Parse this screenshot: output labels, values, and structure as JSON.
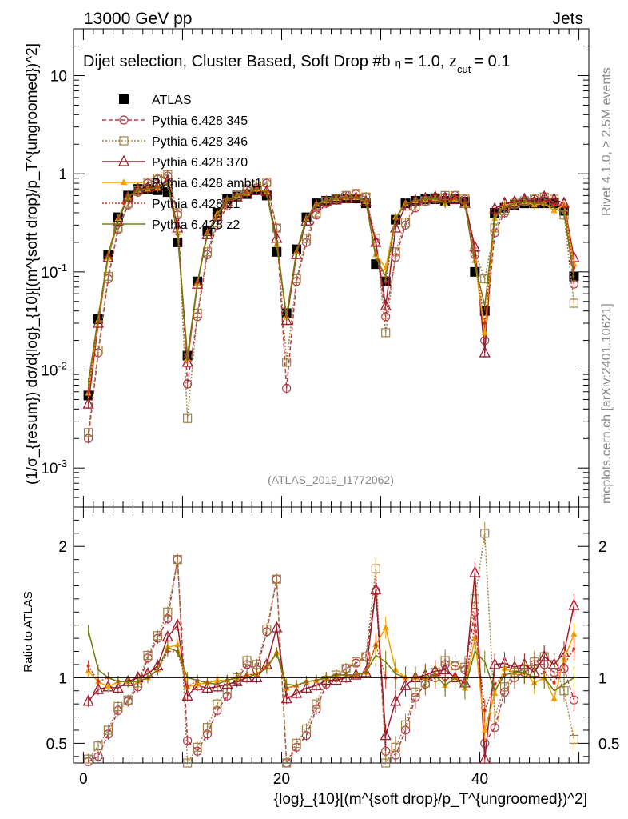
{
  "header": {
    "left": "13000 GeV pp",
    "right": "Jets"
  },
  "side_labels": {
    "rivet": "Rivet 4.1.0, ≥ 2.5M events",
    "mcplots": "mcplots.cern.ch [arXiv:2401.10621]"
  },
  "plot_title": "Dijet selection, Cluster Based, Soft Drop #b",
  "plot_title_tail": "= 1.0, z",
  "plot_title_sub": "cut",
  "plot_title_end": "= 0.1",
  "analysis_id": "(ATLAS_2019_I1772062)",
  "main_ylabel": "(1/σ_{resum}) dσ/d{log}_{10}[(m^{soft drop}/p_T^{ungroomed})^2]",
  "ratio_ylabel": "Ratio to ATLAS",
  "xlabel": "{log}_{10}[(m^{soft drop}/p_T^{ungroomed})^2]",
  "colors": {
    "ATLAS": "#000000",
    "p345": "#b03a48",
    "p346": "#a08040",
    "p370": "#9b1c2e",
    "ambt1": "#f0a000",
    "z1": "#d03020",
    "z2": "#707a10"
  },
  "chart_data": [
    {
      "type": "line",
      "title": "Main panel",
      "yscale": "log",
      "ylim": [
        0.0004,
        30
      ],
      "xlim": [
        -1,
        51
      ],
      "y_tick_labels": [
        "10^{-3}",
        "10^{-2}",
        "10^{-1}",
        "1",
        "10"
      ],
      "legend": [
        "ATLAS",
        "Pythia 6.428 345",
        "Pythia 6.428 346",
        "Pythia 6.428 370",
        "Pythia 6.428 ambt1",
        "Pythia 6.428 z1",
        "Pythia 6.428 z2"
      ],
      "legend_position": "top-left",
      "x": [
        0.5,
        1.5,
        2.5,
        3.5,
        4.5,
        5.5,
        6.5,
        7.5,
        8.5,
        9.5,
        10.5,
        11.5,
        12.5,
        13.5,
        14.5,
        15.5,
        16.5,
        17.5,
        18.5,
        19.5,
        20.5,
        21.5,
        22.5,
        23.5,
        24.5,
        25.5,
        26.5,
        27.5,
        28.5,
        29.5,
        30.5,
        31.5,
        32.5,
        33.5,
        34.5,
        35.5,
        36.5,
        37.5,
        38.5,
        39.5,
        40.5,
        41.5,
        42.5,
        43.5,
        44.5,
        45.5,
        46.5,
        47.5,
        48.5,
        49.5
      ],
      "series": [
        {
          "name": "ATLAS",
          "values": [
            0.0055,
            0.033,
            0.15,
            0.36,
            0.6,
            0.7,
            0.7,
            0.68,
            0.65,
            0.2,
            0.014,
            0.08,
            0.26,
            0.4,
            0.55,
            0.6,
            0.62,
            0.68,
            0.6,
            0.16,
            0.038,
            0.17,
            0.36,
            0.5,
            0.53,
            0.55,
            0.56,
            0.56,
            0.5,
            0.12,
            0.08,
            0.34,
            0.5,
            0.53,
            0.55,
            0.55,
            0.53,
            0.55,
            0.52,
            0.1,
            0.04,
            0.4,
            0.45,
            0.48,
            0.5,
            0.5,
            0.5,
            0.5,
            0.42,
            0.09
          ]
        },
        {
          "name": "Pythia 6.428 345",
          "values": [
            0.002,
            0.015,
            0.085,
            0.27,
            0.48,
            0.65,
            0.8,
            0.88,
            0.95,
            0.38,
            0.0072,
            0.035,
            0.15,
            0.3,
            0.47,
            0.58,
            0.68,
            0.72,
            0.8,
            0.28,
            0.0065,
            0.08,
            0.2,
            0.38,
            0.5,
            0.55,
            0.6,
            0.62,
            0.58,
            0.2,
            0.035,
            0.14,
            0.3,
            0.45,
            0.52,
            0.55,
            0.58,
            0.6,
            0.55,
            0.15,
            0.02,
            0.25,
            0.4,
            0.48,
            0.52,
            0.55,
            0.55,
            0.52,
            0.45,
            0.075
          ]
        },
        {
          "name": "Pythia 6.428 346",
          "values": [
            0.0023,
            0.016,
            0.09,
            0.28,
            0.5,
            0.67,
            0.82,
            0.9,
            0.98,
            0.4,
            0.0032,
            0.038,
            0.16,
            0.32,
            0.5,
            0.6,
            0.7,
            0.75,
            0.82,
            0.28,
            0.012,
            0.085,
            0.22,
            0.4,
            0.52,
            0.56,
            0.6,
            0.63,
            0.58,
            0.22,
            0.024,
            0.16,
            0.32,
            0.47,
            0.53,
            0.57,
            0.6,
            0.6,
            0.56,
            0.16,
            0.085,
            0.28,
            0.42,
            0.5,
            0.53,
            0.56,
            0.58,
            0.55,
            0.38,
            0.048
          ]
        },
        {
          "name": "Pythia 6.428 370",
          "values": [
            0.0045,
            0.03,
            0.14,
            0.33,
            0.58,
            0.7,
            0.72,
            0.74,
            0.85,
            0.28,
            0.012,
            0.075,
            0.24,
            0.37,
            0.52,
            0.58,
            0.62,
            0.68,
            0.66,
            0.22,
            0.032,
            0.15,
            0.33,
            0.47,
            0.52,
            0.54,
            0.56,
            0.57,
            0.52,
            0.2,
            0.045,
            0.28,
            0.47,
            0.53,
            0.56,
            0.58,
            0.56,
            0.55,
            0.5,
            0.18,
            0.015,
            0.44,
            0.5,
            0.52,
            0.55,
            0.52,
            0.58,
            0.55,
            0.5,
            0.14
          ]
        },
        {
          "name": "Pythia 6.428 ambt1",
          "values": [
            0.0058,
            0.032,
            0.14,
            0.35,
            0.58,
            0.68,
            0.7,
            0.72,
            0.8,
            0.25,
            0.013,
            0.076,
            0.25,
            0.39,
            0.54,
            0.6,
            0.63,
            0.7,
            0.65,
            0.19,
            0.035,
            0.16,
            0.35,
            0.49,
            0.53,
            0.56,
            0.57,
            0.57,
            0.52,
            0.15,
            0.11,
            0.36,
            0.5,
            0.53,
            0.55,
            0.56,
            0.5,
            0.55,
            0.48,
            0.13,
            0.024,
            0.35,
            0.48,
            0.5,
            0.52,
            0.48,
            0.5,
            0.42,
            0.48,
            0.12
          ]
        },
        {
          "name": "Pythia 6.428 z1",
          "values": [
            0.006,
            0.032,
            0.15,
            0.35,
            0.58,
            0.68,
            0.7,
            0.72,
            0.78,
            0.24,
            0.013,
            0.078,
            0.25,
            0.38,
            0.54,
            0.6,
            0.63,
            0.7,
            0.65,
            0.19,
            0.035,
            0.16,
            0.35,
            0.49,
            0.53,
            0.56,
            0.57,
            0.57,
            0.52,
            0.15,
            0.08,
            0.34,
            0.5,
            0.53,
            0.55,
            0.56,
            0.52,
            0.56,
            0.5,
            0.14,
            0.03,
            0.38,
            0.46,
            0.5,
            0.52,
            0.5,
            0.52,
            0.48,
            0.46,
            0.11
          ]
        },
        {
          "name": "Pythia 6.428 z2",
          "values": [
            0.0075,
            0.035,
            0.15,
            0.35,
            0.58,
            0.68,
            0.7,
            0.72,
            0.8,
            0.24,
            0.014,
            0.078,
            0.25,
            0.38,
            0.54,
            0.6,
            0.62,
            0.7,
            0.64,
            0.19,
            0.036,
            0.16,
            0.35,
            0.49,
            0.53,
            0.56,
            0.57,
            0.57,
            0.52,
            0.14,
            0.09,
            0.35,
            0.5,
            0.53,
            0.55,
            0.56,
            0.5,
            0.55,
            0.48,
            0.12,
            0.045,
            0.36,
            0.46,
            0.5,
            0.52,
            0.5,
            0.5,
            0.45,
            0.4,
            0.09
          ]
        }
      ]
    },
    {
      "type": "line",
      "title": "Ratio panel",
      "ylabel": "Ratio to ATLAS",
      "ylim": [
        0.35,
        2.3
      ],
      "xlim": [
        -1,
        51
      ],
      "y_ticks": [
        0.5,
        1,
        2
      ],
      "y_tick_labels": [
        "0.5",
        "1",
        "2"
      ],
      "x_ticks": [
        0,
        20,
        40
      ],
      "x_tick_labels": [
        "0",
        "20",
        "40"
      ],
      "x": [
        0.5,
        1.5,
        2.5,
        3.5,
        4.5,
        5.5,
        6.5,
        7.5,
        8.5,
        9.5,
        10.5,
        11.5,
        12.5,
        13.5,
        14.5,
        15.5,
        16.5,
        17.5,
        18.5,
        19.5,
        20.5,
        21.5,
        22.5,
        23.5,
        24.5,
        25.5,
        26.5,
        27.5,
        28.5,
        29.5,
        30.5,
        31.5,
        32.5,
        33.5,
        34.5,
        35.5,
        36.5,
        37.5,
        38.5,
        39.5,
        40.5,
        41.5,
        42.5,
        43.5,
        44.5,
        45.5,
        46.5,
        47.5,
        48.5,
        49.5
      ],
      "series": [
        {
          "name": "Pythia 6.428 345",
          "values": [
            0.36,
            0.4,
            0.57,
            0.75,
            0.82,
            0.93,
            1.15,
            1.3,
            1.45,
            1.9,
            0.52,
            0.44,
            0.57,
            0.75,
            0.86,
            0.98,
            1.1,
            1.06,
            1.35,
            1.75,
            0.18,
            0.47,
            0.56,
            0.76,
            0.95,
            1.0,
            1.07,
            1.11,
            1.16,
            1.66,
            0.44,
            0.41,
            0.6,
            0.85,
            0.95,
            1.0,
            1.1,
            1.09,
            1.06,
            1.5,
            0.5,
            0.62,
            0.89,
            1.0,
            1.04,
            1.1,
            1.1,
            1.04,
            1.07,
            0.83
          ]
        },
        {
          "name": "Pythia 6.428 346",
          "values": [
            0.38,
            0.48,
            0.6,
            0.78,
            0.83,
            0.96,
            1.17,
            1.32,
            1.5,
            1.9,
            0.23,
            0.47,
            0.62,
            0.8,
            0.91,
            1.0,
            1.13,
            1.1,
            1.37,
            1.75,
            0.32,
            0.5,
            0.61,
            0.8,
            0.98,
            1.02,
            1.07,
            1.12,
            1.16,
            1.83,
            0.3,
            0.47,
            0.64,
            0.89,
            0.96,
            1.04,
            1.13,
            1.09,
            1.08,
            1.6,
            2.1,
            0.7,
            0.93,
            1.04,
            1.06,
            1.12,
            1.16,
            1.1,
            0.9,
            0.53
          ]
        },
        {
          "name": "Pythia 6.428 370",
          "values": [
            0.82,
            0.91,
            0.93,
            0.92,
            0.97,
            1.0,
            1.03,
            1.09,
            1.31,
            1.4,
            0.86,
            0.94,
            0.92,
            0.93,
            0.95,
            0.97,
            1.0,
            1.0,
            1.1,
            1.38,
            0.84,
            0.88,
            0.92,
            0.94,
            0.98,
            0.98,
            1.0,
            1.02,
            1.04,
            1.67,
            0.56,
            0.82,
            0.94,
            1.0,
            1.02,
            1.05,
            1.06,
            1.0,
            0.96,
            1.8,
            0.38,
            1.1,
            1.11,
            1.08,
            1.1,
            1.04,
            1.16,
            1.1,
            1.19,
            1.55
          ]
        },
        {
          "name": "Pythia 6.428 ambt1",
          "values": [
            1.05,
            0.97,
            0.93,
            0.97,
            0.97,
            0.97,
            1.0,
            1.06,
            1.23,
            1.25,
            0.93,
            0.95,
            0.96,
            0.98,
            0.98,
            1.0,
            1.02,
            1.03,
            1.08,
            1.19,
            0.92,
            0.94,
            0.97,
            0.98,
            1.0,
            1.02,
            1.02,
            1.02,
            1.04,
            1.25,
            1.38,
            1.06,
            1.0,
            1.0,
            1.0,
            1.02,
            0.94,
            1.0,
            0.92,
            1.3,
            0.6,
            0.88,
            1.07,
            1.04,
            1.04,
            0.96,
            1.0,
            0.84,
            1.14,
            1.33
          ]
        },
        {
          "name": "Pythia 6.428 z1",
          "values": [
            1.09,
            0.97,
            1.0,
            0.97,
            0.97,
            0.97,
            1.0,
            1.06,
            1.2,
            1.2,
            0.93,
            0.98,
            0.96,
            0.95,
            0.98,
            1.0,
            1.02,
            1.03,
            1.08,
            1.19,
            0.92,
            0.94,
            0.97,
            0.98,
            1.0,
            1.02,
            1.02,
            1.02,
            1.04,
            1.25,
            1.0,
            1.0,
            1.0,
            1.0,
            1.0,
            1.02,
            0.98,
            1.02,
            0.96,
            1.4,
            0.75,
            0.95,
            1.02,
            1.04,
            1.04,
            1.0,
            1.04,
            0.96,
            1.1,
            1.22
          ]
        },
        {
          "name": "Pythia 6.428 z2",
          "values": [
            1.36,
            1.06,
            1.0,
            0.97,
            0.97,
            0.97,
            1.0,
            1.06,
            1.23,
            1.2,
            1.0,
            0.98,
            0.96,
            0.95,
            0.98,
            1.0,
            1.0,
            1.03,
            1.07,
            1.19,
            0.95,
            0.94,
            0.97,
            0.98,
            1.0,
            1.02,
            1.02,
            1.02,
            1.04,
            1.17,
            1.12,
            1.03,
            1.0,
            1.0,
            1.0,
            1.02,
            0.94,
            1.0,
            0.92,
            1.2,
            1.12,
            0.9,
            1.02,
            1.04,
            1.04,
            1.0,
            1.0,
            0.9,
            0.95,
            1.0
          ]
        }
      ]
    }
  ]
}
